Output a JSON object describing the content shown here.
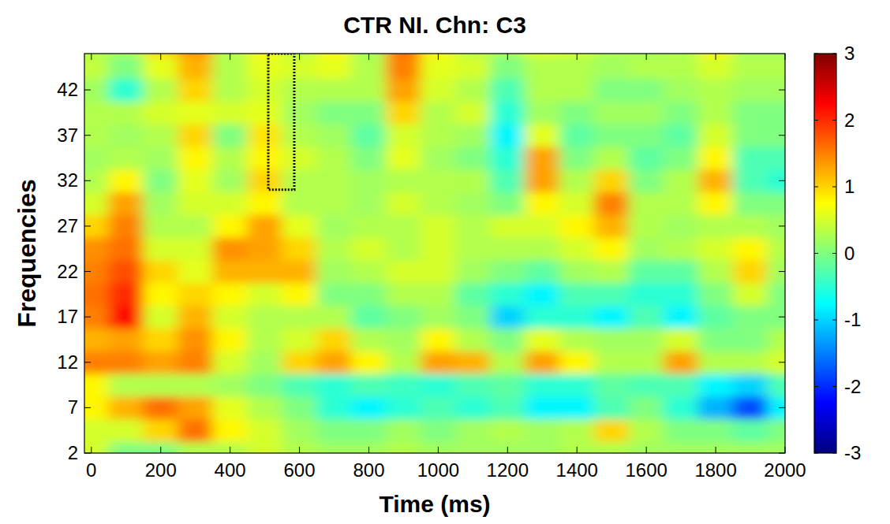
{
  "chart_data": {
    "type": "heatmap",
    "title": "CTR NI. Chn: C3",
    "x_label": "Time (ms)",
    "y_label": "Frequencies",
    "xlim": [
      -20,
      2000
    ],
    "ylim": [
      2,
      46
    ],
    "xticks": [
      0,
      200,
      400,
      600,
      800,
      1000,
      1200,
      1400,
      1600,
      1800,
      2000
    ],
    "yticks": [
      2,
      7,
      12,
      17,
      22,
      27,
      32,
      37,
      42
    ],
    "x": [
      0,
      100,
      200,
      300,
      400,
      500,
      600,
      700,
      800,
      900,
      1000,
      1100,
      1200,
      1300,
      1400,
      1500,
      1600,
      1700,
      1800,
      1900,
      2000
    ],
    "y": [
      2,
      4.5,
      7,
      9.5,
      12,
      14.5,
      17,
      19.5,
      22,
      24.5,
      27,
      29.5,
      32,
      34.5,
      37,
      39.5,
      42,
      44.5,
      47
    ],
    "values": [
      [
        0.5,
        0.5,
        0.8,
        0.8,
        1.5,
        1.2,
        1.5,
        1.6,
        1.5,
        1.4,
        1.0,
        0.5,
        0.3,
        0.2,
        0.3,
        0.3,
        0.2,
        0.4,
        0.3
      ],
      [
        0,
        0.5,
        1.2,
        0.3,
        1.5,
        1.3,
        2.2,
        2.0,
        1.8,
        1.6,
        1.5,
        1.3,
        0.8,
        0.3,
        0.2,
        0.3,
        -0.5,
        0,
        0.3
      ],
      [
        0,
        1.0,
        1.6,
        0.3,
        1.3,
        1.0,
        0.5,
        0.8,
        1.0,
        0.5,
        0.3,
        0.2,
        0,
        0.2,
        0.3,
        0.5,
        0.3,
        0.6,
        1.0
      ],
      [
        0.3,
        1.6,
        1.3,
        0.3,
        1.5,
        1.4,
        1.2,
        1.0,
        0.6,
        0.5,
        0.3,
        0.5,
        0.6,
        0.8,
        1.0,
        0.6,
        1.0,
        1.2,
        1.4
      ],
      [
        0.3,
        0.8,
        0.6,
        0.2,
        0.5,
        0.8,
        0.5,
        0.8,
        1.2,
        1.4,
        0.8,
        0.5,
        0.2,
        0.3,
        0,
        0.5,
        0.3,
        0.3,
        0.3
      ],
      [
        0.5,
        0.5,
        0.3,
        0,
        0.2,
        0.3,
        0.3,
        0.5,
        1.2,
        1.3,
        1.3,
        0.8,
        1.0,
        0.8,
        0.9,
        0.6,
        0.5,
        0.6,
        0.8
      ],
      [
        0.3,
        0.2,
        0,
        -0.3,
        1.0,
        0.5,
        0.3,
        0.8,
        1.2,
        1.0,
        0.6,
        0.3,
        0.3,
        0.5,
        0.3,
        0.2,
        0.3,
        0.5,
        0.3
      ],
      [
        0.2,
        0,
        -0.5,
        -0.5,
        1.3,
        1.0,
        0.3,
        0,
        0.2,
        0.3,
        0.2,
        0.3,
        0.3,
        0.3,
        0.2,
        0,
        0.3,
        0.6,
        0.8
      ],
      [
        0.2,
        0,
        -0.8,
        -0.3,
        0.8,
        0.3,
        -0.2,
        0,
        0.3,
        0.5,
        0.3,
        0.2,
        0.2,
        0,
        -0.2,
        0,
        0.3,
        0.3,
        0.2
      ],
      [
        0.3,
        0.2,
        -0.5,
        -0.4,
        0.3,
        0.2,
        0,
        0.3,
        0.5,
        0.3,
        0.3,
        0.5,
        0.3,
        0.6,
        0.5,
        1.0,
        1.3,
        1.5,
        1.6
      ],
      [
        0.2,
        0,
        -0.3,
        -0.5,
        1.3,
        0.8,
        0.2,
        0.3,
        0.5,
        0.5,
        0.5,
        0.3,
        0.3,
        0.2,
        0.3,
        0.3,
        0.5,
        0.6,
        0.8
      ],
      [
        0.2,
        0.2,
        -0.5,
        -0.3,
        1.2,
        0.3,
        0,
        -0.2,
        0.2,
        0.3,
        0.3,
        0.2,
        0.3,
        0,
        0.2,
        0.5,
        0.3,
        0.5,
        0.3
      ],
      [
        0.2,
        0.3,
        -0.3,
        -0.2,
        0.3,
        0,
        -1.0,
        -0.5,
        0,
        0.3,
        0.5,
        0,
        -0.3,
        -0.5,
        -0.8,
        -0.5,
        -0.3,
        0,
        0.3
      ],
      [
        0.2,
        0.2,
        -0.8,
        -0.5,
        1.3,
        0.6,
        -0.5,
        -0.8,
        -0.2,
        0.3,
        0.5,
        0.8,
        1.3,
        1.3,
        0.6,
        0.2,
        0.3,
        0.3,
        0.6
      ],
      [
        0.3,
        0.3,
        -0.8,
        -0.5,
        0.8,
        0.3,
        -0.5,
        -0.3,
        0.2,
        0.5,
        0.8,
        0.5,
        0.3,
        0,
        -0.2,
        0,
        0.3,
        0.3,
        0.5
      ],
      [
        0.3,
        1.0,
        -0.3,
        -0.2,
        0.3,
        0.2,
        -0.8,
        -0.3,
        0.3,
        0.8,
        1.2,
        1.5,
        1.0,
        0.3,
        0,
        0.2,
        0,
        0.2,
        0.3
      ],
      [
        0.2,
        0.3,
        0,
        -0.3,
        0.3,
        0.2,
        -0.3,
        -0.5,
        -0.2,
        0.2,
        0.3,
        0.3,
        0,
        -0.2,
        0,
        0.2,
        0,
        0.3,
        0.2
      ],
      [
        0.2,
        0,
        -0.5,
        -0.3,
        1.3,
        0.5,
        -0.8,
        -0.5,
        -0.2,
        0.3,
        0.2,
        0.3,
        0.3,
        0,
        -0.2,
        0,
        0.2,
        0.3,
        0.3
      ],
      [
        0.2,
        0,
        -1.2,
        -0.8,
        0.3,
        0,
        -0.2,
        0,
        0.3,
        0.5,
        0.3,
        0.8,
        1.2,
        0.8,
        0.5,
        0.3,
        0.3,
        0.5,
        0.8
      ],
      [
        0.2,
        -0.2,
        -1.8,
        -1.0,
        0.3,
        0,
        0,
        0.5,
        1.0,
        0.8,
        0.3,
        0,
        -0.3,
        -0.3,
        0,
        0,
        0.2,
        0.3,
        0.2
      ],
      [
        0.2,
        0,
        -0.8,
        -0.3,
        0.5,
        0.3,
        0,
        0,
        0.2,
        0.3,
        0.2,
        0,
        -0.5,
        -0.3,
        0,
        0,
        0.2,
        0.3,
        0.2
      ]
    ],
    "color_range": [
      -3,
      3
    ],
    "color_ticks": [
      -3,
      -2,
      -1,
      0,
      1,
      2,
      3
    ],
    "highlight": {
      "x": [
        510,
        585
      ],
      "y": [
        31,
        46
      ]
    }
  }
}
